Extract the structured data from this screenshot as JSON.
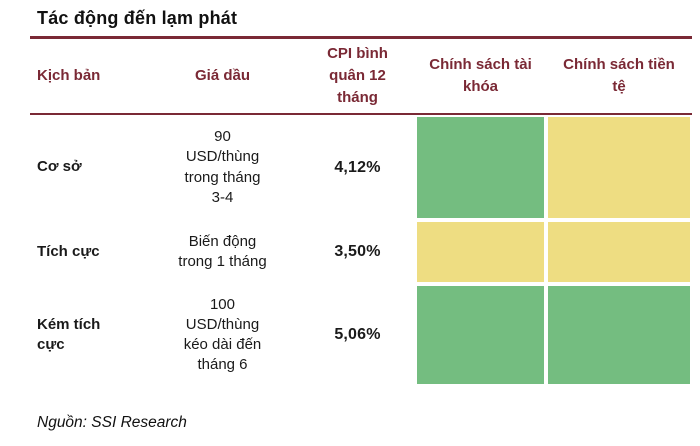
{
  "title": "Tác động đến lạm phát",
  "source": "Nguồn: SSI Research",
  "colors": {
    "green": "#74bd80",
    "yellow": "#eedd82",
    "maroon": "#7a2935"
  },
  "table": {
    "headers": {
      "scenario": "Kịch bản",
      "oil_price": "Giá dầu",
      "cpi": "CPI bình quân 12 tháng",
      "fiscal_policy": "Chính sách tài khóa",
      "monetary_policy": "Chính sách tiền tệ"
    },
    "rows": [
      {
        "scenario": "Cơ sở",
        "oil_price": "90\nUSD/thùng\ntrong tháng\n3-4",
        "cpi": "4,12%",
        "fiscal_policy": "green",
        "monetary_policy": "yellow"
      },
      {
        "scenario": "Tích cực",
        "oil_price": "Biến động\ntrong 1 tháng",
        "cpi": "3,50%",
        "fiscal_policy": "yellow",
        "monetary_policy": "yellow"
      },
      {
        "scenario": "Kém tích cực",
        "oil_price": "100\nUSD/thùng\nkéo dài đến\ntháng 6",
        "cpi": "5,06%",
        "fiscal_policy": "green",
        "monetary_policy": "green"
      }
    ]
  },
  "chart_data": {
    "type": "table",
    "title": "Tác động đến lạm phát",
    "columns": [
      "Kịch bản",
      "Giá dầu",
      "CPI bình quân 12 tháng",
      "Chính sách tài khóa",
      "Chính sách tiền tệ"
    ],
    "rows": [
      [
        "Cơ sở",
        "90 USD/thùng trong tháng 3-4",
        "4,12%",
        "green",
        "yellow"
      ],
      [
        "Tích cực",
        "Biến động trong 1 tháng",
        "3,50%",
        "yellow",
        "yellow"
      ],
      [
        "Kém tích cực",
        "100 USD/thùng kéo dài đến tháng 6",
        "5,06%",
        "green",
        "green"
      ]
    ],
    "cell_color_legend": {
      "green": "#74bd80",
      "yellow": "#eedd82"
    },
    "source": "Nguồn: SSI Research"
  }
}
